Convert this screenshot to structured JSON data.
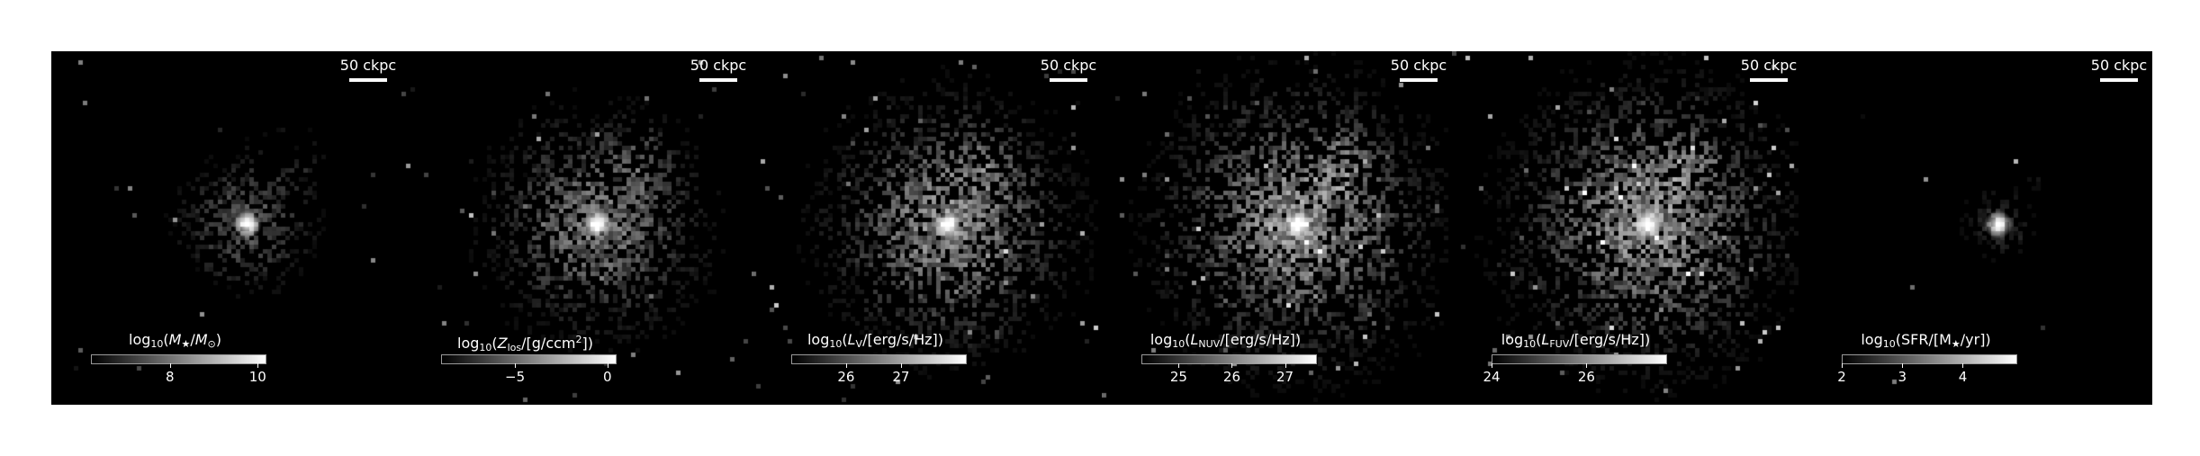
{
  "figure": {
    "background": "#ffffff",
    "panel_background": "#000000",
    "colormap": "grayscale",
    "panels": [
      {
        "scalebar": "50 ckpc",
        "colorbar": {
          "label_parts": [
            "log",
            "10",
            "(",
            "M",
            "★",
            "/",
            "M",
            "⊙",
            ")"
          ],
          "min": 6.2,
          "max": 10.2,
          "ticks": [
            {
              "value": 8,
              "label": "8"
            },
            {
              "value": 10,
              "label": "10"
            }
          ]
        },
        "galaxy": {
          "core_brightness": 1.0,
          "halo": 0.45,
          "spread": 0.22,
          "noise": 0.12
        }
      },
      {
        "scalebar": "50 ckpc",
        "colorbar": {
          "label_parts": [
            "log",
            "10",
            "(",
            "Z",
            "los",
            "/[g/ccm",
            "2",
            "])"
          ],
          "min": -9,
          "max": 0.5,
          "ticks": [
            {
              "value": -5,
              "label": "−5"
            },
            {
              "value": 0,
              "label": "0"
            }
          ]
        },
        "galaxy": {
          "core_brightness": 0.95,
          "halo": 0.6,
          "spread": 0.34,
          "noise": 0.3
        }
      },
      {
        "scalebar": "50 ckpc",
        "colorbar": {
          "label_parts": [
            "log",
            "10",
            "(",
            "L",
            "V",
            "/[erg/s/Hz])"
          ],
          "min": 25,
          "max": 28.2,
          "ticks": [
            {
              "value": 26,
              "label": "26"
            },
            {
              "value": 27,
              "label": "27"
            }
          ]
        },
        "galaxy": {
          "core_brightness": 0.9,
          "halo": 0.7,
          "spread": 0.38,
          "noise": 0.45
        }
      },
      {
        "scalebar": "50 ckpc",
        "colorbar": {
          "label_parts": [
            "log",
            "10",
            "(",
            "L",
            "NUV",
            "/[erg/s/Hz])"
          ],
          "min": 24.3,
          "max": 27.6,
          "ticks": [
            {
              "value": 25,
              "label": "25"
            },
            {
              "value": 26,
              "label": "26"
            },
            {
              "value": 27,
              "label": "27"
            }
          ]
        },
        "galaxy": {
          "core_brightness": 0.9,
          "halo": 0.75,
          "spread": 0.42,
          "noise": 0.55
        }
      },
      {
        "scalebar": "50 ckpc",
        "colorbar": {
          "label_parts": [
            "log",
            "10",
            "(",
            "L",
            "FUV",
            "/[erg/s/Hz])"
          ],
          "min": 24,
          "max": 27.7,
          "ticks": [
            {
              "value": 24,
              "label": "24"
            },
            {
              "value": 26,
              "label": "26"
            }
          ]
        },
        "galaxy": {
          "core_brightness": 0.9,
          "halo": 0.75,
          "spread": 0.42,
          "noise": 0.6
        }
      },
      {
        "scalebar": "50 ckpc",
        "colorbar": {
          "label_parts": [
            "log",
            "10",
            "(SFR/[M",
            "★",
            "/yr])"
          ],
          "min": 2,
          "max": 4.9,
          "ticks": [
            {
              "value": 2,
              "label": "2"
            },
            {
              "value": 3,
              "label": "3"
            },
            {
              "value": 4,
              "label": "4"
            }
          ]
        },
        "galaxy": {
          "core_brightness": 1.0,
          "halo": 0.25,
          "spread": 0.12,
          "noise": 0.05
        }
      }
    ]
  }
}
